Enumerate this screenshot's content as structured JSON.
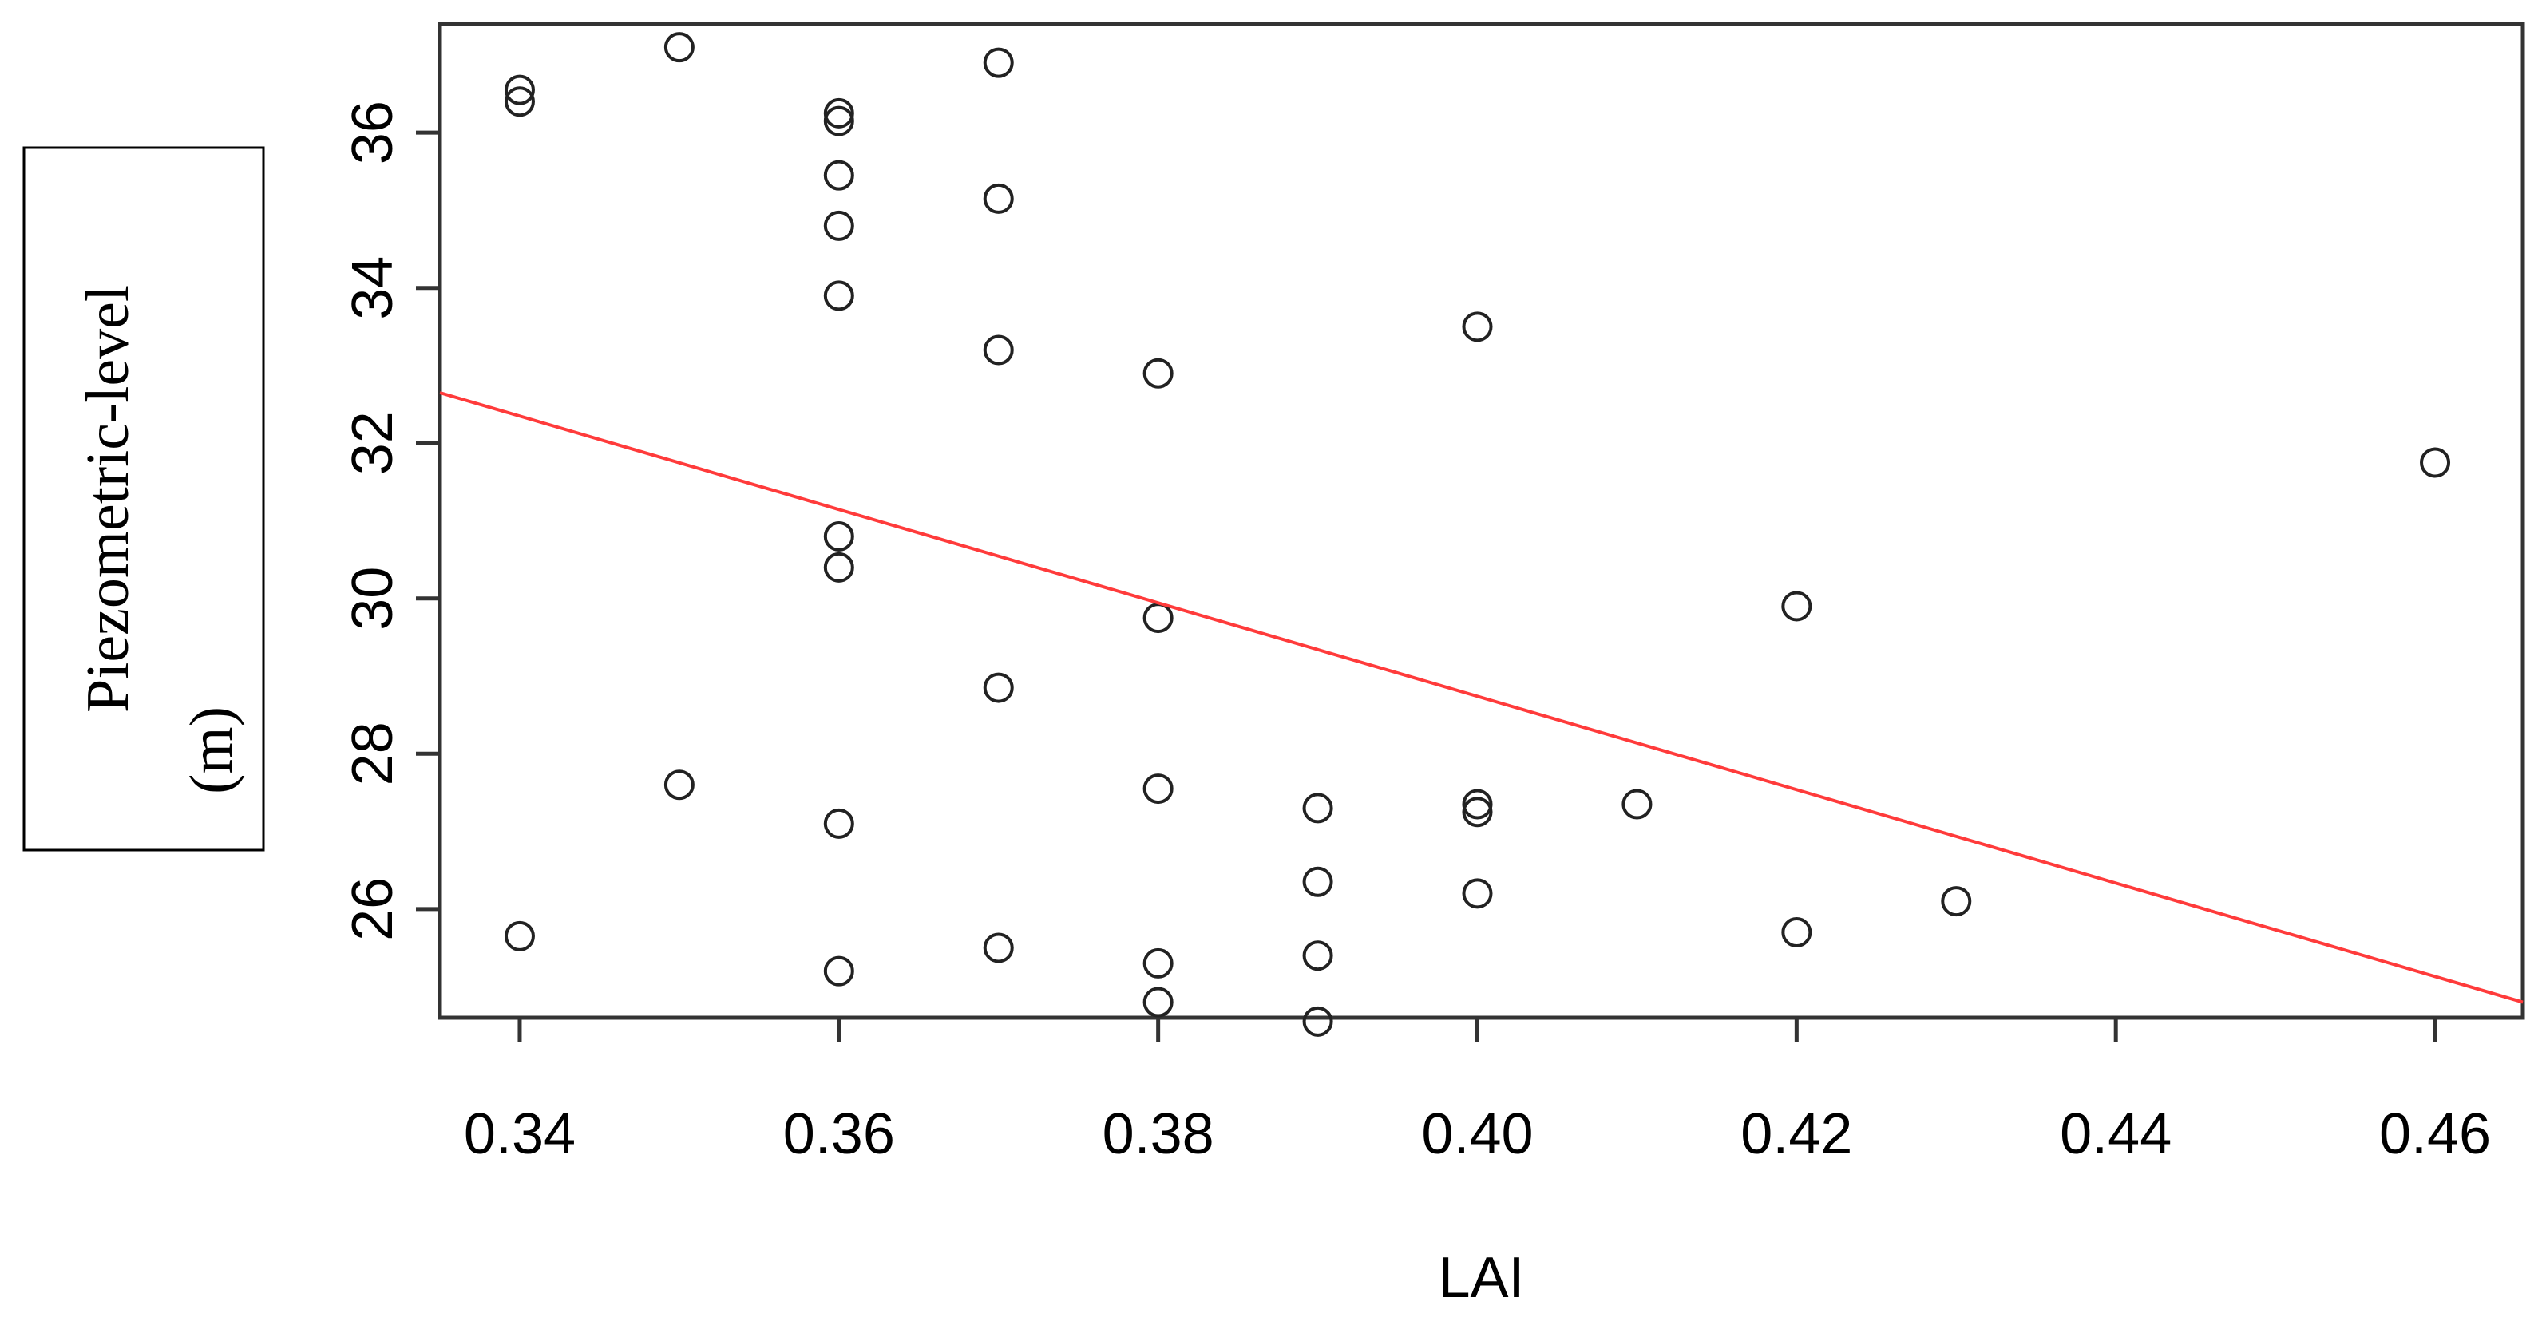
{
  "chart_data": {
    "type": "scatter",
    "title": "",
    "xlabel": "LAI",
    "ylabel": {
      "line1": "Piezometric-level",
      "line2": "(m)"
    },
    "xlim": [
      0.335,
      0.4655
    ],
    "ylim": [
      24.6,
      37.4
    ],
    "xticks": [
      0.34,
      0.36,
      0.38,
      0.4,
      0.42,
      0.44,
      0.46
    ],
    "xtick_labels": [
      "0.34",
      "0.36",
      "0.38",
      "0.40",
      "0.42",
      "0.44",
      "0.46"
    ],
    "yticks": [
      26,
      28,
      30,
      32,
      34,
      36
    ],
    "ytick_labels": [
      "26",
      "28",
      "30",
      "32",
      "34",
      "36"
    ],
    "grid": false,
    "points": [
      {
        "x": 0.34,
        "y": 36.55
      },
      {
        "x": 0.34,
        "y": 36.4
      },
      {
        "x": 0.34,
        "y": 25.65
      },
      {
        "x": 0.35,
        "y": 37.1
      },
      {
        "x": 0.35,
        "y": 27.6
      },
      {
        "x": 0.36,
        "y": 36.25
      },
      {
        "x": 0.36,
        "y": 36.15
      },
      {
        "x": 0.36,
        "y": 35.45
      },
      {
        "x": 0.36,
        "y": 34.8
      },
      {
        "x": 0.36,
        "y": 33.9
      },
      {
        "x": 0.36,
        "y": 30.8
      },
      {
        "x": 0.36,
        "y": 30.4
      },
      {
        "x": 0.36,
        "y": 27.1
      },
      {
        "x": 0.36,
        "y": 25.2
      },
      {
        "x": 0.37,
        "y": 36.9
      },
      {
        "x": 0.37,
        "y": 35.15
      },
      {
        "x": 0.37,
        "y": 33.2
      },
      {
        "x": 0.37,
        "y": 28.85
      },
      {
        "x": 0.37,
        "y": 25.5
      },
      {
        "x": 0.38,
        "y": 32.9
      },
      {
        "x": 0.38,
        "y": 29.75
      },
      {
        "x": 0.38,
        "y": 27.55
      },
      {
        "x": 0.38,
        "y": 25.3
      },
      {
        "x": 0.38,
        "y": 24.8
      },
      {
        "x": 0.39,
        "y": 27.3
      },
      {
        "x": 0.39,
        "y": 26.35
      },
      {
        "x": 0.39,
        "y": 25.4
      },
      {
        "x": 0.39,
        "y": 24.55
      },
      {
        "x": 0.4,
        "y": 33.5
      },
      {
        "x": 0.4,
        "y": 27.35
      },
      {
        "x": 0.4,
        "y": 27.25
      },
      {
        "x": 0.4,
        "y": 26.2
      },
      {
        "x": 0.41,
        "y": 27.35
      },
      {
        "x": 0.42,
        "y": 29.9
      },
      {
        "x": 0.42,
        "y": 25.7
      },
      {
        "x": 0.43,
        "y": 26.1
      },
      {
        "x": 0.46,
        "y": 31.75
      }
    ],
    "regression_line": {
      "x": [
        0.335,
        0.4655
      ],
      "y": [
        32.65,
        24.8
      ],
      "color": "#ff3b3b"
    }
  }
}
